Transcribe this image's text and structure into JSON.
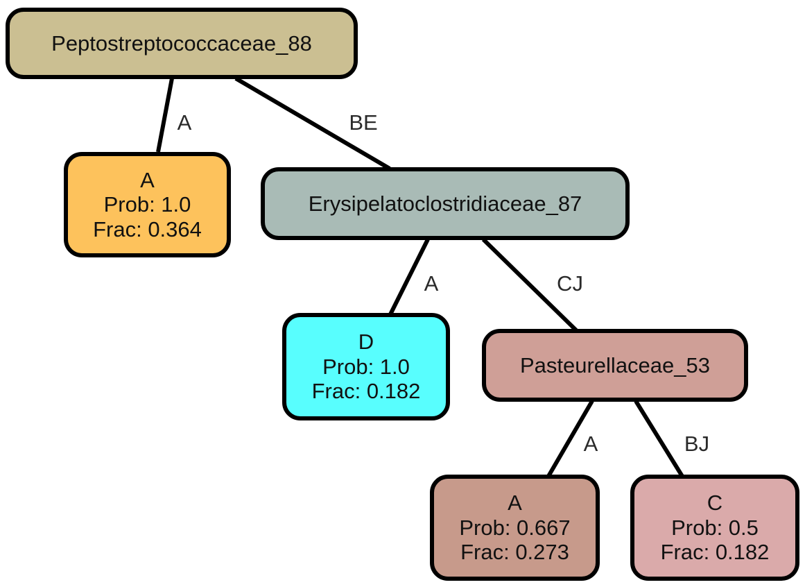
{
  "nodes": {
    "root": {
      "name": "Peptostreptococcaceae_88",
      "color": "#cbbf92"
    },
    "leaf_a1": {
      "label": "A",
      "prob": "Prob: 1.0",
      "frac": "Frac: 0.364",
      "color": "#fdc25c"
    },
    "ery": {
      "name": "Erysipelatoclostridiaceae_87",
      "color": "#a9bbb6"
    },
    "leaf_d": {
      "label": "D",
      "prob": "Prob: 1.0",
      "frac": "Frac: 0.182",
      "color": "#58fefe"
    },
    "past": {
      "name": "Pasteurellaceae_53",
      "color": "#cf9f97"
    },
    "leaf_a2": {
      "label": "A",
      "prob": "Prob: 0.667",
      "frac": "Frac: 0.273",
      "color": "#c79a8b"
    },
    "leaf_c": {
      "label": "C",
      "prob": "Prob: 0.5",
      "frac": "Frac: 0.182",
      "color": "#daaaaa"
    }
  },
  "edges": {
    "root_a1": "A",
    "root_ery": "BE",
    "ery_d": "A",
    "ery_past": "CJ",
    "past_a2": "A",
    "past_c": "BJ"
  }
}
